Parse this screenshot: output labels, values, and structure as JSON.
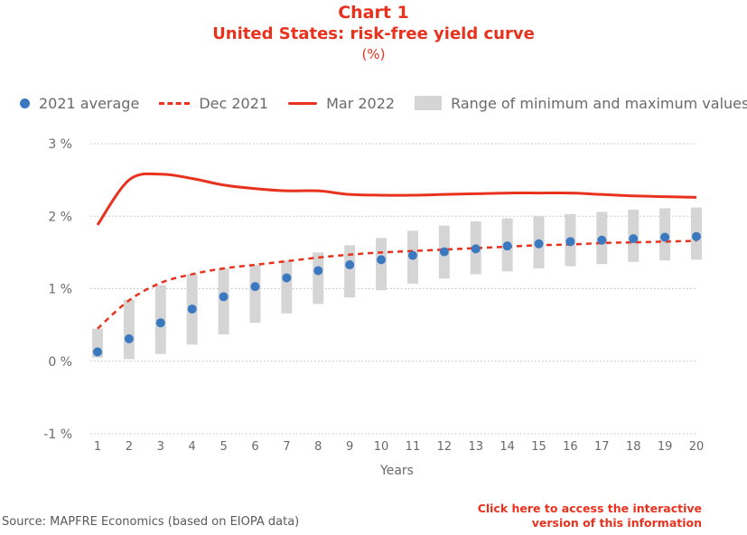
{
  "header": {
    "chart_number": "Chart 1",
    "title": "United States: risk-free yield curve",
    "unit": "(%)"
  },
  "legend": [
    {
      "label": "2021 average",
      "icon": "dot",
      "color": "#3a78bf"
    },
    {
      "label": "Dec 2021",
      "icon": "dashed-line",
      "color": "#e8321e"
    },
    {
      "label": "Mar 2022",
      "icon": "solid-line",
      "color": "#e8321e"
    },
    {
      "label": "Range of minimum and maximum values",
      "icon": "grey-bar",
      "color": "#d5d5d5"
    }
  ],
  "chart_data": {
    "type": "line",
    "x": [
      1,
      2,
      3,
      4,
      5,
      6,
      7,
      8,
      9,
      10,
      11,
      12,
      13,
      14,
      15,
      16,
      17,
      18,
      19,
      20
    ],
    "x_ticks": [
      "1",
      "2",
      "3",
      "4",
      "5",
      "6",
      "7",
      "8",
      "9",
      "10",
      "11",
      "12",
      "13",
      "14",
      "15",
      "16",
      "17",
      "18",
      "19",
      "20"
    ],
    "xlabel": "Years",
    "ylabel": "",
    "ylim": [
      -1,
      3
    ],
    "y_ticks": [
      {
        "value": 3,
        "label": "3 %"
      },
      {
        "value": 2,
        "label": "2 %"
      },
      {
        "value": 1,
        "label": "1 %"
      },
      {
        "value": 0,
        "label": "0 %"
      },
      {
        "value": -1,
        "label": "-1 %"
      }
    ],
    "grid": "horizontal dotted at each y tick",
    "legend_position": "top",
    "series": [
      {
        "name": "2021 average",
        "kind": "dots",
        "color": "#3a78bf",
        "values": [
          0.13,
          0.31,
          0.53,
          0.72,
          0.89,
          1.03,
          1.15,
          1.25,
          1.33,
          1.4,
          1.46,
          1.51,
          1.55,
          1.59,
          1.62,
          1.65,
          1.67,
          1.69,
          1.71,
          1.72
        ]
      },
      {
        "name": "Dec 2021",
        "kind": "dashed-line",
        "color": "#e8321e",
        "values": [
          0.45,
          0.84,
          1.08,
          1.2,
          1.28,
          1.33,
          1.38,
          1.43,
          1.47,
          1.5,
          1.52,
          1.54,
          1.56,
          1.58,
          1.6,
          1.61,
          1.63,
          1.64,
          1.65,
          1.66
        ]
      },
      {
        "name": "Mar 2022",
        "kind": "solid-line",
        "color": "#e8321e",
        "values": [
          1.88,
          2.5,
          2.58,
          2.52,
          2.43,
          2.38,
          2.35,
          2.35,
          2.3,
          2.29,
          2.29,
          2.3,
          2.31,
          2.32,
          2.32,
          2.32,
          2.3,
          2.28,
          2.27,
          2.26
        ]
      },
      {
        "name": "Range of minimum and maximum values",
        "kind": "range-bars",
        "color": "#d5d5d5",
        "min": [
          0.05,
          0.03,
          0.1,
          0.23,
          0.37,
          0.53,
          0.66,
          0.79,
          0.88,
          0.98,
          1.07,
          1.14,
          1.2,
          1.24,
          1.28,
          1.31,
          1.34,
          1.37,
          1.39,
          1.4
        ],
        "max": [
          0.45,
          0.85,
          1.05,
          1.2,
          1.28,
          1.33,
          1.39,
          1.5,
          1.6,
          1.7,
          1.8,
          1.87,
          1.93,
          1.97,
          2.0,
          2.03,
          2.06,
          2.09,
          2.11,
          2.12
        ]
      }
    ]
  },
  "footer": {
    "source": "Source: MAPFRE Economics (based on EIOPA data)",
    "link_line1": "Click here to access the interactive",
    "link_line2": "version of this information"
  }
}
